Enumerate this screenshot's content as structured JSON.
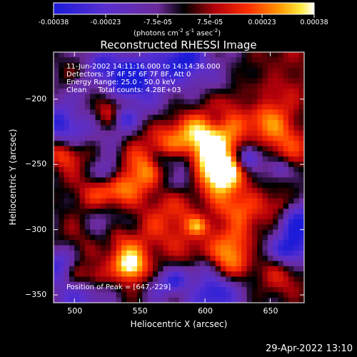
{
  "colorbar": {
    "ticks": [
      "-0.00038",
      "-0.00023",
      "-7.5e-05",
      "7.5e-05",
      "0.00023",
      "0.00038"
    ],
    "unit_label": "(photons cm",
    "unit_sup1": "-2",
    "unit_mid": " s",
    "unit_sup2": "-1",
    "unit_end": " asec",
    "unit_sup3": "-2",
    "unit_close": ")"
  },
  "chart_data": {
    "type": "heatmap",
    "title": "Reconstructed RHESSI Image",
    "xlabel": "Heliocentric X (arcsec)",
    "ylabel": "Heliocentric Y (arcsec)",
    "xlim": [
      484,
      676
    ],
    "ylim": [
      -356,
      -164
    ],
    "xticks": [
      500,
      550,
      600,
      650
    ],
    "yticks": [
      -200,
      -250,
      -300,
      -350
    ],
    "xtick_labels": [
      "500",
      "550",
      "600",
      "650"
    ],
    "ytick_labels": [
      "−200",
      "−250",
      "−300",
      "−350"
    ],
    "zlim": [
      -0.00038,
      0.00038
    ],
    "annotations": [
      "11-Jun-2002 14:11:16.000 to 14:14:36.000",
      "Detectors: 3F 4F 5F 6F 7F 8F, Att 0",
      "Energy Range: 25.0 - 50.0 keV",
      "Clean     Total counts: 4.28E+03"
    ],
    "peak_label": "Position of Peak = [647,-229]",
    "peak": [
      647,
      -229
    ]
  },
  "footer": {
    "timestamp": "29-Apr-2022 13:10"
  },
  "colors": {
    "background": "#000000",
    "foreground": "#ffffff"
  }
}
